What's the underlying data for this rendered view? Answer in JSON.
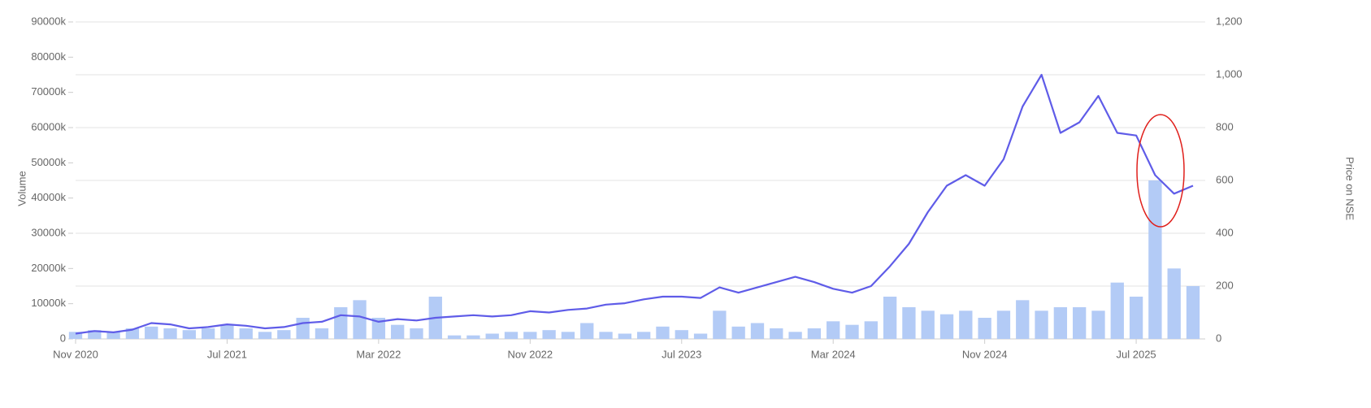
{
  "chart_data": {
    "type": "bar",
    "ylabel": "Volume",
    "y2label": "Price on NSE",
    "x": [
      "Nov 2020",
      "Dec 2020",
      "Jan 2021",
      "Feb 2021",
      "Mar 2021",
      "Apr 2021",
      "May 2021",
      "Jun 2021",
      "Jul 2021",
      "Aug 2021",
      "Sep 2021",
      "Oct 2021",
      "Nov 2021",
      "Dec 2021",
      "Jan 2022",
      "Feb 2022",
      "Mar 2022",
      "Apr 2022",
      "May 2022",
      "Jun 2022",
      "Jul 2022",
      "Aug 2022",
      "Sep 2022",
      "Oct 2022",
      "Nov 2022",
      "Dec 2022",
      "Jan 2023",
      "Feb 2023",
      "Mar 2023",
      "Apr 2023",
      "May 2023",
      "Jun 2023",
      "Jul 2023",
      "Aug 2023",
      "Sep 2023",
      "Oct 2023",
      "Nov 2023",
      "Dec 2023",
      "Jan 2024",
      "Feb 2024",
      "Mar 2024",
      "Apr 2024",
      "May 2024",
      "Jun 2024",
      "Jul 2024",
      "Aug 2024",
      "Sep 2024",
      "Oct 2024",
      "Nov 2024",
      "Dec 2024",
      "Jan 2025",
      "Feb 2025",
      "Mar 2025",
      "Apr 2025",
      "May 2025",
      "Jun 2025",
      "Jul 2025",
      "Aug 2025",
      "Sep 2025",
      "Oct 2025"
    ],
    "xticks": [
      "Nov 2020",
      "Jul 2021",
      "Mar 2022",
      "Nov 2022",
      "Jul 2023",
      "Mar 2024",
      "Nov 2024",
      "Jul 2025"
    ],
    "series": [
      {
        "type": "bar",
        "color": "#b3cbf6",
        "values": [
          2000,
          2500,
          2000,
          3000,
          3500,
          3000,
          2500,
          3000,
          4000,
          3000,
          2000,
          2500,
          6000,
          3000,
          9000,
          11000,
          6000,
          4000,
          3000,
          12000,
          1000,
          1000,
          1500,
          2000,
          2000,
          2500,
          2000,
          4500,
          2000,
          1500,
          2000,
          3500,
          2500,
          1500,
          8000,
          3500,
          4500,
          3000,
          2000,
          3000,
          5000,
          4000,
          5000,
          12000,
          9000,
          8000,
          7000,
          8000,
          6000,
          8000,
          11000,
          8000,
          9000,
          9000,
          8000,
          16000,
          12000,
          45000,
          20000,
          15000
        ]
      },
      {
        "type": "line",
        "axis": "y2",
        "color": "#5f5ce8",
        "values": [
          20,
          30,
          25,
          35,
          60,
          55,
          40,
          45,
          55,
          50,
          40,
          45,
          60,
          65,
          90,
          85,
          65,
          75,
          70,
          80,
          85,
          90,
          85,
          90,
          105,
          100,
          110,
          115,
          130,
          135,
          150,
          160,
          160,
          155,
          195,
          175,
          195,
          215,
          235,
          215,
          190,
          175,
          200,
          275,
          360,
          480,
          580,
          620,
          580,
          680,
          880,
          1000,
          780,
          820,
          920,
          780,
          770,
          620,
          550,
          580
        ]
      }
    ],
    "ylim": [
      0,
      90000
    ],
    "yticks": [
      0,
      {
        "value": 10000,
        "label": "10000k"
      },
      {
        "value": 20000,
        "label": "20000k"
      },
      {
        "value": 30000,
        "label": "30000k"
      },
      {
        "value": 40000,
        "label": "40000k"
      },
      {
        "value": 50000,
        "label": "50000k"
      },
      {
        "value": 60000,
        "label": "60000k"
      },
      {
        "value": 70000,
        "label": "70000k"
      },
      {
        "value": 80000,
        "label": "80000k"
      },
      {
        "value": 90000,
        "label": "90000k"
      }
    ],
    "y2lim": [
      0,
      1200
    ],
    "y2ticks": [
      0,
      200,
      400,
      600,
      800,
      {
        "value": 1000,
        "label": "1,000"
      },
      {
        "value": 1200,
        "label": "1,200"
      }
    ],
    "grid": true
  }
}
